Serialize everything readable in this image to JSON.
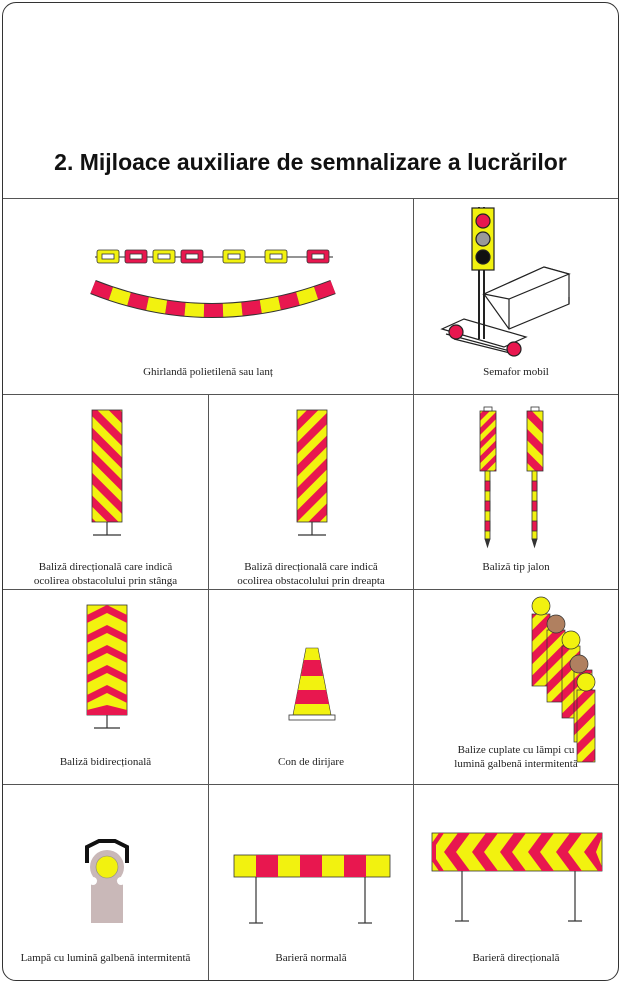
{
  "title": "2. Mijloace auxiliare de semnalizare a lucrărilor",
  "colors": {
    "red": "#e8174f",
    "yellow": "#f2f20f",
    "gray": "#c9b8b8",
    "dark": "#222222"
  },
  "cells": {
    "garland": {
      "caption": "Ghirlandă polietilenă sau lanț",
      "icon": "garland-chain-icon"
    },
    "semafor": {
      "caption": "Semafor mobil",
      "icon": "mobile-traffic-light-icon"
    },
    "left": {
      "caption_line1": "Baliză direcțională care indică",
      "caption_line2": "ocolirea obstacolului prin stânga",
      "icon": "directional-beacon-left-icon"
    },
    "right": {
      "caption_line1": "Baliză direcțională care indică",
      "caption_line2": "ocolirea obstacolului prin dreapta",
      "icon": "directional-beacon-right-icon"
    },
    "jalon": {
      "caption": "Baliză tip jalon",
      "icon": "pole-beacon-icon"
    },
    "bidir": {
      "caption": "Baliză bidirecțională",
      "icon": "bidirectional-beacon-icon"
    },
    "cone": {
      "caption": "Con de dirijare",
      "icon": "traffic-cone-icon"
    },
    "coupled": {
      "caption_line1": "Balize cuplate cu lămpi cu",
      "caption_line2": "lumină galbenă intermitentă",
      "icon": "coupled-beacons-icon"
    },
    "lamp": {
      "caption": "Lampă cu lumină galbenă intermitentă",
      "icon": "flashing-lamp-icon"
    },
    "barrier": {
      "caption": "Barieră normală",
      "icon": "normal-barrier-icon"
    },
    "dirbarrier": {
      "caption": "Barieră direcțională",
      "icon": "directional-barrier-icon"
    }
  }
}
